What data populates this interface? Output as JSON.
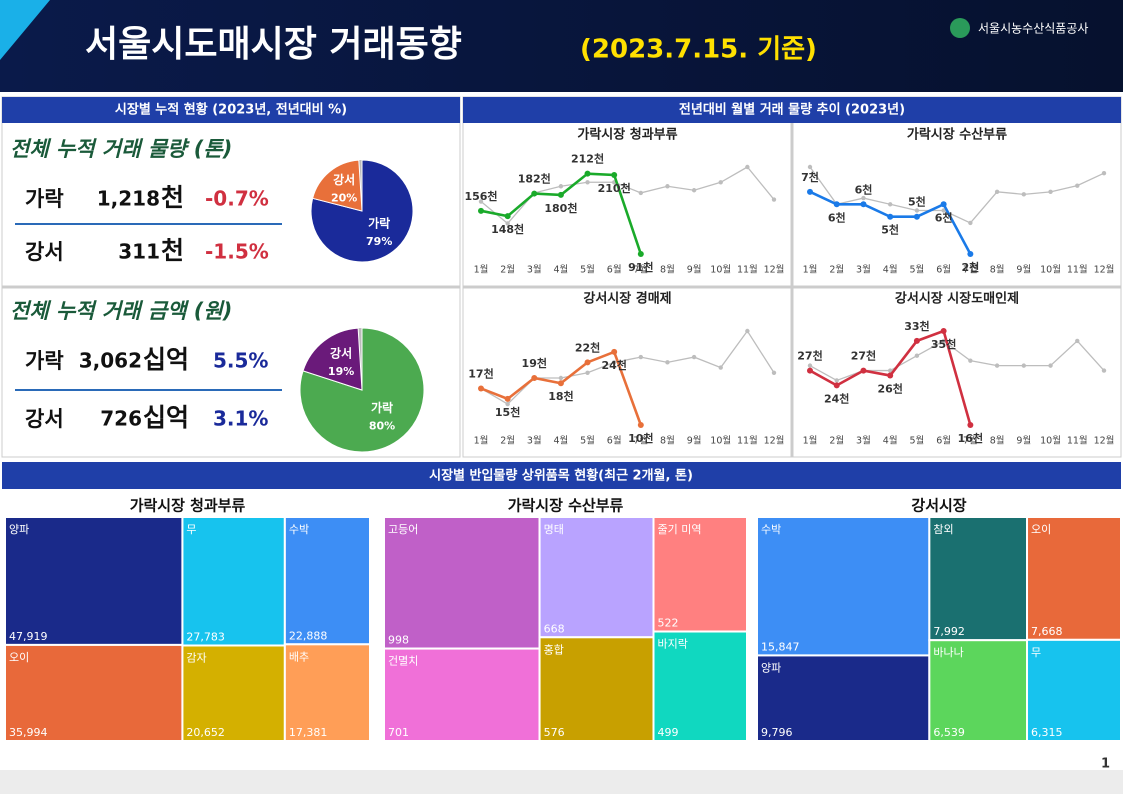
{
  "header": {
    "title": "서울시도매시장 거래동향",
    "date": "(2023.7.15. 기준)",
    "org": "서울시농수산식품공사"
  },
  "summary": {
    "title": "시장별 누적 현황 (2023년, 전년대비 %)",
    "blocks": [
      {
        "heading": "전체 누적 거래 물량 (톤)",
        "rows": [
          {
            "market": "가락",
            "amount": "1,218",
            "unit": "천",
            "change": "-0.7%"
          },
          {
            "market": "강서",
            "amount": "311",
            "unit": "천",
            "change": "-1.5%"
          }
        ]
      },
      {
        "heading": "전체 누적 거래 금액 (원)",
        "rows": [
          {
            "market": "가락",
            "amount": "3,062",
            "unit": "십억",
            "change": "5.5%"
          },
          {
            "market": "강서",
            "amount": "726",
            "unit": "십억",
            "change": "3.1%"
          }
        ]
      }
    ]
  },
  "trend_title": "전년대비 월별 거래 물량 추이 (2023년)",
  "items_title": "시장별 반입물량 상위품목 현황(최근 2개월, 톤)",
  "page_number": "1",
  "chart_data": [
    {
      "type": "pie",
      "categories": [
        "가락",
        "강서"
      ],
      "values": [
        79,
        20
      ],
      "value_labels": [
        "79%",
        "20%"
      ],
      "colors": [
        "#1a2a9a",
        "#e8703a"
      ]
    },
    {
      "type": "pie",
      "categories": [
        "가락",
        "강서"
      ],
      "values": [
        80,
        19
      ],
      "value_labels": [
        "80%",
        "19%"
      ],
      "colors": [
        "#4caa50",
        "#6a1a7a"
      ]
    },
    {
      "type": "line",
      "title": "가락시장 청과부류",
      "categories": [
        "1월",
        "2월",
        "3월",
        "4월",
        "5월",
        "6월",
        "7월",
        "8월",
        "9월",
        "10월",
        "11월",
        "12월"
      ],
      "series": [
        {
          "color": "#1aaa2a",
          "values": [
            156,
            148,
            182,
            180,
            212,
            210,
            91,
            null,
            null,
            null,
            null,
            null
          ],
          "value_labels": [
            "156천",
            "148천",
            "182천",
            "180천",
            "212천",
            "210천",
            "91천",
            null,
            null,
            null,
            null,
            null
          ]
        },
        {
          "color": "#bdbdbd",
          "values": [
            170,
            137,
            183,
            193,
            199,
            199,
            183,
            193,
            187,
            199,
            222,
            173
          ]
        }
      ]
    },
    {
      "type": "line",
      "title": "가락시장 수산부류",
      "categories": [
        "1월",
        "2월",
        "3월",
        "4월",
        "5월",
        "6월",
        "7월",
        "8월",
        "9월",
        "10월",
        "11월",
        "12월"
      ],
      "series": [
        {
          "color": "#1a7ae8",
          "values": [
            7,
            6,
            6,
            5,
            5,
            6,
            2,
            null,
            null,
            null,
            null,
            null
          ],
          "value_labels": [
            "7천",
            "6천",
            "6천",
            "5천",
            "5천",
            "6천",
            "2천",
            null,
            null,
            null,
            null,
            null
          ]
        },
        {
          "color": "#bdbdbd",
          "values": [
            9,
            6,
            6.5,
            6,
            5.5,
            5.5,
            4.5,
            7,
            6.8,
            7,
            7.5,
            8.5
          ]
        }
      ]
    },
    {
      "type": "line",
      "title": "강서시장 경매제",
      "categories": [
        "1월",
        "2월",
        "3월",
        "4월",
        "5월",
        "6월",
        "7월",
        "8월",
        "9월",
        "10월",
        "11월",
        "12월"
      ],
      "series": [
        {
          "color": "#e8703a",
          "values": [
            17,
            15,
            19,
            18,
            22,
            24,
            10,
            null,
            null,
            null,
            null,
            null
          ],
          "value_labels": [
            "17천",
            "15천",
            "19천",
            "18천",
            "22천",
            "24천",
            "10천",
            null,
            null,
            null,
            null,
            null
          ]
        },
        {
          "color": "#bdbdbd",
          "values": [
            17,
            14,
            19,
            19,
            20,
            22,
            23,
            22,
            23,
            21,
            28,
            20
          ]
        }
      ]
    },
    {
      "type": "line",
      "title": "강서시장 시장도매인제",
      "categories": [
        "1월",
        "2월",
        "3월",
        "4월",
        "5월",
        "6월",
        "7월",
        "8월",
        "9월",
        "10월",
        "11월",
        "12월"
      ],
      "series": [
        {
          "color": "#d03040",
          "values": [
            27,
            24,
            27,
            26,
            33,
            35,
            16,
            null,
            null,
            null,
            null,
            null
          ],
          "value_labels": [
            "27천",
            "24천",
            "27천",
            "26천",
            "33천",
            "35천",
            "16천",
            null,
            null,
            null,
            null,
            null
          ]
        },
        {
          "color": "#bdbdbd",
          "values": [
            28,
            25,
            27,
            27,
            30,
            33,
            29,
            28,
            28,
            28,
            33,
            27
          ]
        }
      ]
    },
    {
      "type": "treemap",
      "title": "가락시장 청과부류",
      "categories": [
        "양파",
        "오이",
        "무",
        "감자",
        "수박",
        "배추"
      ],
      "values": [
        47919,
        35994,
        27783,
        20652,
        22888,
        17381
      ],
      "value_labels": [
        "47,919",
        "35,994",
        "27,783",
        "20,652",
        "22,888",
        "17,381"
      ],
      "colors": [
        "#1a2a8a",
        "#e8693a",
        "#17c3ee",
        "#d4b000",
        "#3d8ef5",
        "#ff9e57"
      ]
    },
    {
      "type": "treemap",
      "title": "가락시장 수산부류",
      "categories": [
        "고등어",
        "건멸치",
        "명태",
        "홍합",
        "줄기 미역",
        "바지락"
      ],
      "values": [
        998,
        701,
        668,
        576,
        522,
        499
      ],
      "value_labels": [
        "998",
        "701",
        "668",
        "576",
        "522",
        "499"
      ],
      "colors": [
        "#c060c8",
        "#f070d8",
        "#b9a3ff",
        "#c8a000",
        "#ff8080",
        "#10d8c0"
      ]
    },
    {
      "type": "treemap",
      "title": "강서시장",
      "categories": [
        "수박",
        "양파",
        "참외",
        "바나나",
        "오이",
        "무"
      ],
      "values": [
        15847,
        9796,
        7992,
        6539,
        7668,
        6315
      ],
      "value_labels": [
        "15,847",
        "9,796",
        "7,992",
        "6,539",
        "7,668",
        "6,315"
      ],
      "colors": [
        "#3d8ef5",
        "#1a2a8a",
        "#1a7070",
        "#5cd65c",
        "#e8693a",
        "#17c3ee"
      ]
    }
  ]
}
